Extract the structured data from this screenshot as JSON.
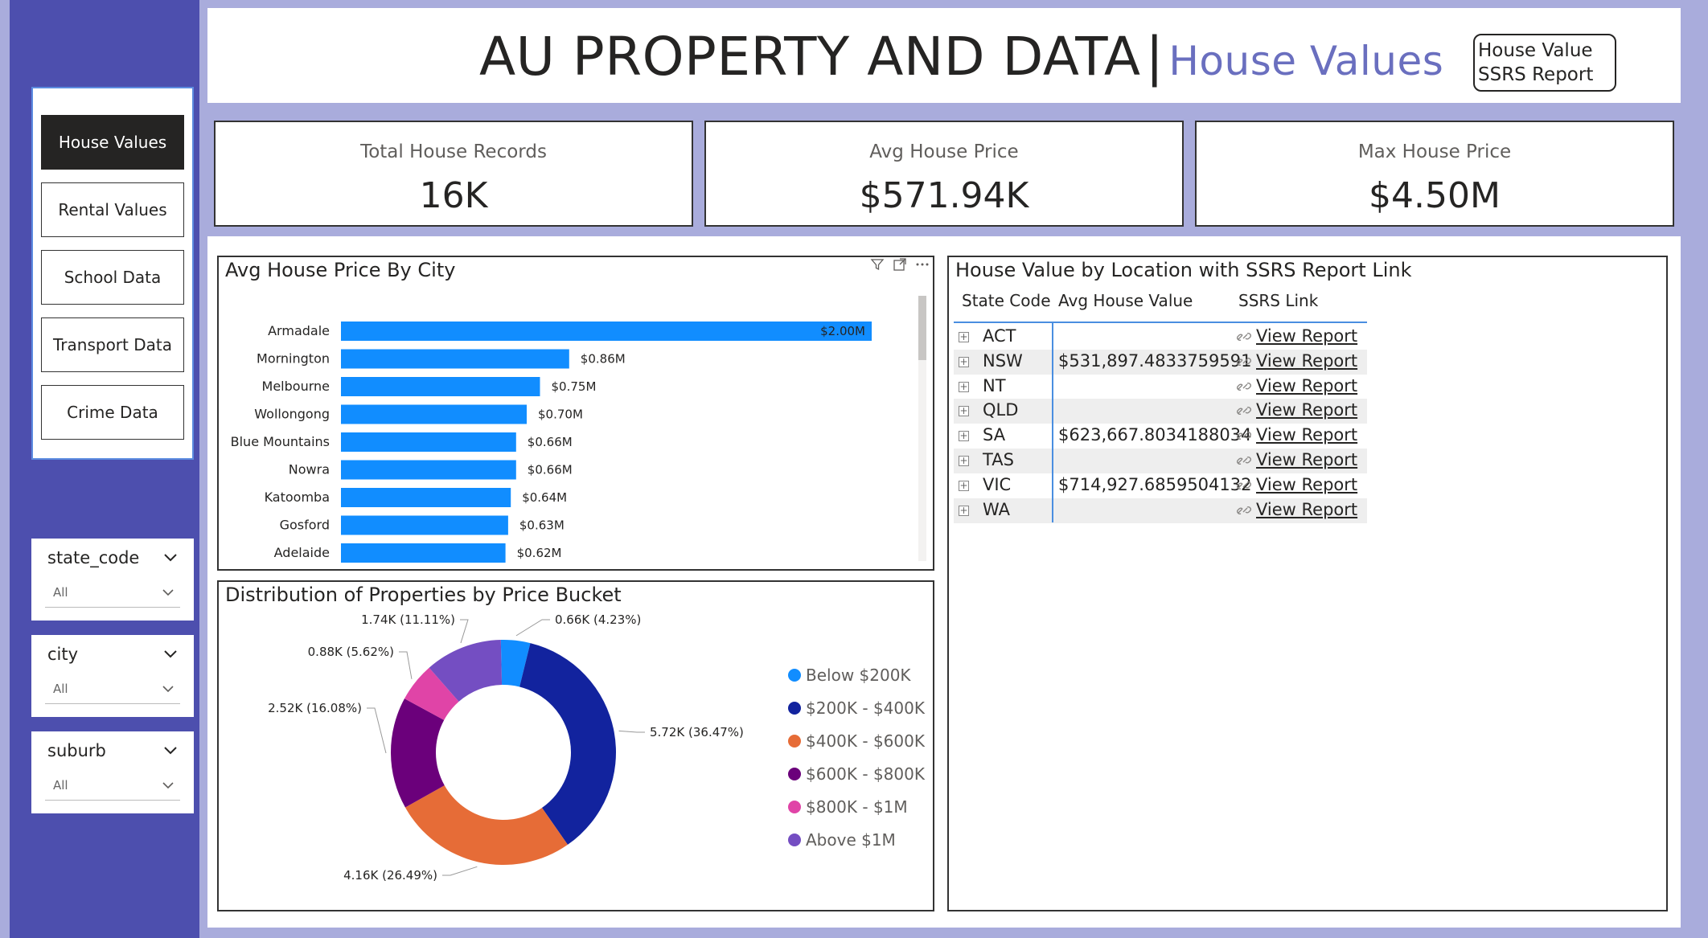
{
  "nav": {
    "items": [
      {
        "label": "House Values",
        "active": true
      },
      {
        "label": "Rental Values",
        "active": false
      },
      {
        "label": "School Data",
        "active": false
      },
      {
        "label": "Transport Data",
        "active": false
      },
      {
        "label": "Crime Data",
        "active": false
      }
    ]
  },
  "slicers": [
    {
      "title": "state_code",
      "value": "All"
    },
    {
      "title": "city",
      "value": "All"
    },
    {
      "title": "suburb",
      "value": "All"
    }
  ],
  "header": {
    "title": "AU PROPERTY AND DATA",
    "separator": "|",
    "subtitle": "House Values",
    "ssrs_button_line1": "House Value",
    "ssrs_button_line2": "SSRS Report"
  },
  "cards": [
    {
      "label": "Total House Records",
      "value": "16K"
    },
    {
      "label": "Avg House Price",
      "value": "$571.94K"
    },
    {
      "label": "Max House Price",
      "value": "$4.50M"
    }
  ],
  "bar_chart": {
    "title": "Avg House Price By City",
    "chart_data": {
      "type": "bar",
      "orientation": "horizontal",
      "categories": [
        "Armadale",
        "Mornington",
        "Melbourne",
        "Wollongong",
        "Blue Mountains",
        "Nowra",
        "Katoomba",
        "Gosford",
        "Adelaide"
      ],
      "values": [
        2.0,
        0.86,
        0.75,
        0.7,
        0.66,
        0.66,
        0.64,
        0.63,
        0.62
      ],
      "data_labels": [
        "$2.00M",
        "$0.86M",
        "$0.75M",
        "$0.70M",
        "$0.66M",
        "$0.66M",
        "$0.64M",
        "$0.63M",
        "$0.62M"
      ],
      "unit": "M",
      "xlim": [
        0,
        2.0
      ],
      "color": "#118dff"
    }
  },
  "donut_chart": {
    "title": "Distribution of Properties by Price Bucket",
    "chart_data": {
      "type": "pie",
      "donut": true,
      "categories": [
        "Below $200K",
        "$200K - $400K",
        "$400K - $600K",
        "$600K - $800K",
        "$800K - $1M",
        "Above $1M"
      ],
      "values": [
        0.66,
        5.72,
        4.16,
        2.52,
        0.88,
        1.74
      ],
      "percent": [
        4.23,
        36.47,
        26.49,
        16.08,
        5.62,
        11.11
      ],
      "data_labels": [
        "0.66K (4.23%)",
        "5.72K (36.47%)",
        "4.16K (26.49%)",
        "2.52K (16.08%)",
        "0.88K (5.62%)",
        "1.74K (11.11%)"
      ],
      "colors": [
        "#118dff",
        "#12239e",
        "#e66c37",
        "#6b007b",
        "#e044a7",
        "#744ec2"
      ],
      "legend_position": "right"
    }
  },
  "table": {
    "title": "House Value by Location with SSRS Report Link",
    "columns": [
      "State Code",
      "Avg House Value",
      "SSRS Link"
    ],
    "rows": [
      {
        "state": "ACT",
        "avg": "",
        "link": "View Report"
      },
      {
        "state": "NSW",
        "avg": "$531,897.4833759591",
        "link": "View Report"
      },
      {
        "state": "NT",
        "avg": "",
        "link": "View Report"
      },
      {
        "state": "QLD",
        "avg": "",
        "link": "View Report"
      },
      {
        "state": "SA",
        "avg": "$623,667.8034188034",
        "link": "View Report"
      },
      {
        "state": "TAS",
        "avg": "",
        "link": "View Report"
      },
      {
        "state": "VIC",
        "avg": "$714,927.6859504132",
        "link": "View Report"
      },
      {
        "state": "WA",
        "avg": "",
        "link": "View Report"
      }
    ],
    "expand_icon": "plus-box-icon",
    "link_icon": "link-icon"
  }
}
